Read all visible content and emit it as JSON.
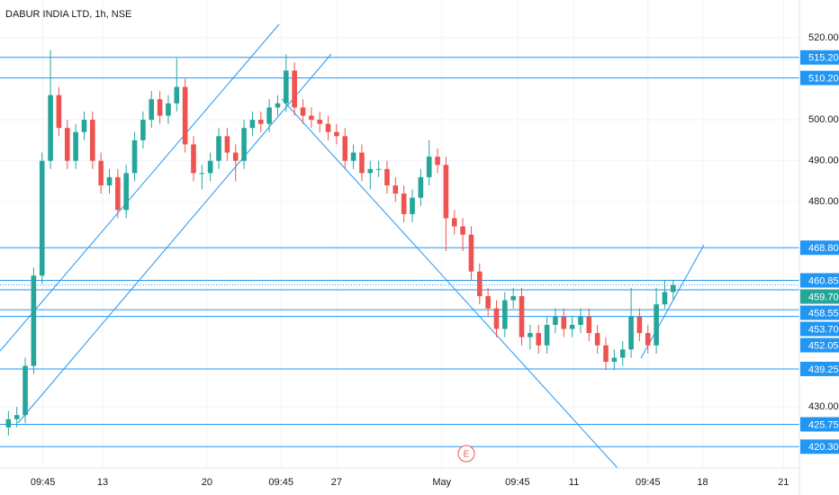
{
  "chart_data": {
    "type": "candlestick",
    "title": "DABUR INDIA LTD, 1h, NSE",
    "up_color": "#26a69a",
    "down_color": "#ef5350",
    "level_color": "#2196f3",
    "grid": true,
    "xlim": [
      -1,
      94
    ],
    "ylim": [
      415.1,
      529.2
    ],
    "xticks": [
      {
        "value": 4.1,
        "label": "09:45"
      },
      {
        "value": 11.2,
        "label": "13"
      },
      {
        "value": 23.6,
        "label": "20"
      },
      {
        "value": 32.4,
        "label": "09:45"
      },
      {
        "value": 39,
        "label": "27"
      },
      {
        "value": 51.5,
        "label": "May"
      },
      {
        "value": 60.5,
        "label": "09:45"
      },
      {
        "value": 67.2,
        "label": "11"
      },
      {
        "value": 76,
        "label": "09:45"
      },
      {
        "value": 82.5,
        "label": "18"
      },
      {
        "value": 92.1,
        "label": "21"
      }
    ],
    "yticks": [
      {
        "value": 520,
        "label": "520.00"
      },
      {
        "value": 500,
        "label": "500.00"
      },
      {
        "value": 490,
        "label": "490.00"
      },
      {
        "value": 480,
        "label": "480.00"
      },
      {
        "value": 430,
        "label": "430.00"
      }
    ],
    "levels": [
      {
        "value": 515.2,
        "label": "515.20"
      },
      {
        "value": 510.2,
        "label": "510.20"
      },
      {
        "value": 468.8,
        "label": "468.80"
      },
      {
        "value": 460.85,
        "label": "460.85"
      },
      {
        "value": 458.55,
        "label": "458.55"
      },
      {
        "value": 453.7,
        "label": "453.70"
      },
      {
        "value": 452.05,
        "label": "452.05"
      },
      {
        "value": 439.25,
        "label": "439.25"
      },
      {
        "value": 425.75,
        "label": "425.75"
      },
      {
        "value": 420.3,
        "label": "420.30"
      }
    ],
    "last_price": {
      "value": 459.7,
      "label": "459.70",
      "color": "#26a69a"
    },
    "event_marker": "E",
    "open": [
      425,
      427,
      428,
      440,
      462,
      490,
      506,
      498,
      490,
      497,
      500,
      490,
      484,
      486,
      478,
      487,
      495,
      500,
      505,
      501,
      504,
      508,
      494,
      487,
      487,
      490,
      496,
      492,
      490,
      498,
      500,
      499,
      503,
      504,
      512,
      503,
      501,
      500,
      499,
      497,
      496,
      490,
      492,
      487,
      488,
      488,
      484,
      482,
      477,
      481,
      486,
      491,
      489,
      476,
      474,
      472,
      463,
      457,
      454,
      449,
      456,
      457,
      447,
      448,
      445,
      450,
      452,
      449,
      450,
      452,
      448,
      445,
      441,
      442,
      444,
      452,
      448,
      445,
      455,
      458
    ],
    "high": [
      429,
      430,
      442,
      464,
      492,
      517,
      508,
      500,
      499,
      502,
      502,
      492,
      488,
      488,
      489,
      497,
      502,
      507,
      507,
      506,
      515,
      510,
      496,
      489,
      492,
      498,
      498,
      494,
      500,
      502,
      502,
      505,
      506,
      516,
      514,
      505,
      503,
      502,
      501,
      499,
      498,
      494,
      494,
      490,
      490,
      490,
      486,
      484,
      483,
      488,
      495,
      493,
      491,
      478,
      476,
      474,
      465,
      459,
      456,
      458,
      459,
      459,
      450,
      450,
      452,
      454,
      454,
      452,
      454,
      454,
      450,
      447,
      444,
      446,
      459,
      454,
      450,
      459,
      461,
      461
    ],
    "low": [
      423,
      425,
      426,
      438,
      460,
      488,
      496,
      488,
      488,
      495,
      488,
      482,
      482,
      476,
      476,
      485,
      493,
      498,
      499,
      499,
      502,
      492,
      485,
      483,
      485,
      488,
      490,
      485,
      488,
      496,
      497,
      497,
      501,
      502,
      501,
      499,
      498,
      497,
      495,
      494,
      488,
      488,
      485,
      483,
      486,
      482,
      480,
      475,
      475,
      479,
      484,
      487,
      468,
      472,
      468,
      461,
      455,
      452,
      447,
      447,
      454,
      445,
      444,
      443,
      443,
      448,
      447,
      447,
      448,
      446,
      443,
      439,
      439,
      440,
      442,
      446,
      443,
      443,
      454,
      456
    ],
    "close": [
      427,
      428,
      440,
      462,
      490,
      506,
      498,
      490,
      497,
      500,
      490,
      484,
      486,
      478,
      487,
      495,
      500,
      505,
      501,
      504,
      508,
      494,
      487,
      487,
      490,
      496,
      492,
      490,
      498,
      500,
      499,
      503,
      504,
      512,
      503,
      501,
      500,
      499,
      497,
      496,
      490,
      492,
      487,
      488,
      488,
      484,
      482,
      477,
      481,
      486,
      491,
      489,
      476,
      474,
      472,
      463,
      457,
      454,
      449,
      456,
      457,
      447,
      448,
      445,
      450,
      452,
      449,
      450,
      452,
      448,
      445,
      441,
      442,
      444,
      452,
      448,
      445,
      455,
      458,
      459.7
    ]
  }
}
